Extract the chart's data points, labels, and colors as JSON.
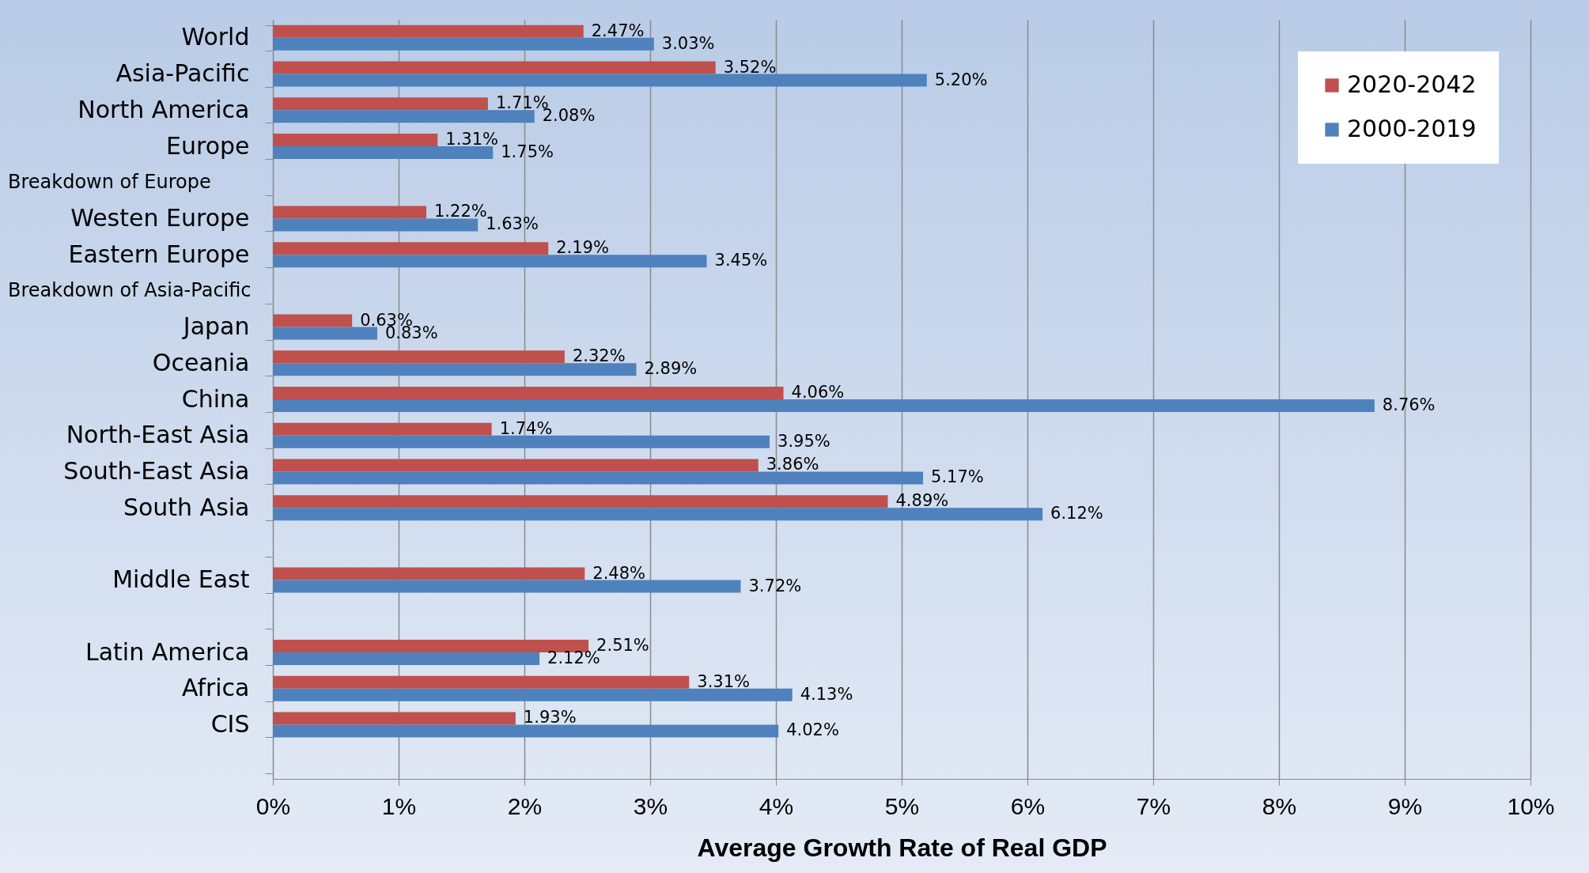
{
  "chart_data": {
    "type": "bar",
    "orientation": "horizontal",
    "xlabel": "Average Growth Rate of Real GDP",
    "categories": [
      "World",
      "Asia-Pacific",
      "North America",
      "Europe",
      null,
      "Westen Europe",
      "Eastern Europe",
      null,
      "Japan",
      "Oceania",
      "China",
      "North-East Asia",
      "South-East Asia",
      "South Asia",
      null,
      "Middle East",
      null,
      "Latin America",
      "Africa",
      "CIS",
      null
    ],
    "series": [
      {
        "name": "2020-2042",
        "color": "#c0504d",
        "values": [
          2.47,
          3.52,
          1.71,
          1.31,
          null,
          1.22,
          2.19,
          null,
          0.63,
          2.32,
          4.06,
          1.74,
          3.86,
          4.89,
          null,
          2.48,
          null,
          2.51,
          3.31,
          1.93,
          null
        ],
        "value_labels": [
          "2.47%",
          "3.52%",
          "1.71%",
          "1.31%",
          null,
          "1.22%",
          "2.19%",
          null,
          "0.63%",
          "2.32%",
          "4.06%",
          "1.74%",
          "3.86%",
          "4.89%",
          null,
          "2.48%",
          null,
          "2.51%",
          "3.31%",
          "1.93%",
          null
        ]
      },
      {
        "name": "2000-2019",
        "color": "#4f81bd",
        "values": [
          3.03,
          5.2,
          2.08,
          1.75,
          null,
          1.63,
          3.45,
          null,
          0.83,
          2.89,
          8.76,
          3.95,
          5.17,
          6.12,
          null,
          3.72,
          null,
          2.12,
          4.13,
          4.02,
          null
        ],
        "value_labels": [
          "3.03%",
          "5.20%",
          "2.08%",
          "1.75%",
          null,
          "1.63%",
          "3.45%",
          null,
          "0.83%",
          "2.89%",
          "8.76%",
          "3.95%",
          "5.17%",
          "6.12%",
          null,
          "3.72%",
          null,
          "2.12%",
          "4.13%",
          "4.02%",
          null
        ]
      }
    ],
    "xlim": [
      0,
      10
    ],
    "xticks": [
      {
        "value": 0,
        "label": "0%"
      },
      {
        "value": 1,
        "label": "1%"
      },
      {
        "value": 2,
        "label": "2%"
      },
      {
        "value": 3,
        "label": "3%"
      },
      {
        "value": 4,
        "label": "4%"
      },
      {
        "value": 5,
        "label": "5%"
      },
      {
        "value": 6,
        "label": "6%"
      },
      {
        "value": 7,
        "label": "7%"
      },
      {
        "value": 8,
        "label": "8%"
      },
      {
        "value": 9,
        "label": "9%"
      },
      {
        "value": 10,
        "label": "10%"
      }
    ],
    "annotations": [
      "Breakdown of Europe",
      "Breakdown of Asia-Pacific"
    ],
    "grid": "x",
    "legend": "top right"
  }
}
